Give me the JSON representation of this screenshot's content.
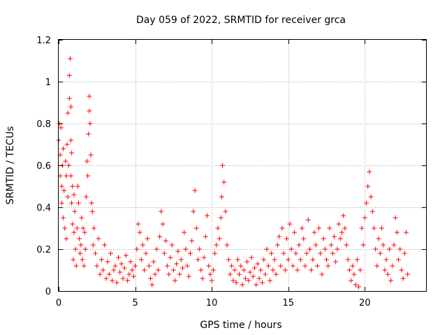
{
  "chart_data": {
    "type": "scatter",
    "title": "Day 059 of 2022, SRMTID for receiver grca",
    "xlabel": "GPS time / hours",
    "ylabel": "SRMTID / TECUs",
    "xlim": [
      0,
      24
    ],
    "ylim": [
      0,
      1.2
    ],
    "grid": true,
    "marker": "plus",
    "color": "#ff0000",
    "xticks": [
      0,
      5,
      10,
      15,
      20
    ],
    "xtick_labels": [
      "0",
      "5",
      "10",
      "15",
      "20"
    ],
    "yticks": [
      0,
      0.2,
      0.4,
      0.6,
      0.8,
      1.0,
      1.2
    ],
    "ytick_labels": [
      "0",
      "0.2",
      "0.4",
      "0.6",
      "0.8",
      "1",
      "1.2"
    ],
    "series": [
      {
        "name": "grca",
        "x": [
          0.0,
          0.05,
          0.1,
          0.1,
          0.15,
          0.2,
          0.2,
          0.25,
          0.3,
          0.3,
          0.35,
          0.4,
          0.45,
          0.5,
          0.5,
          0.55,
          0.6,
          0.6,
          0.65,
          0.7,
          0.7,
          0.75,
          0.8,
          0.8,
          0.8,
          0.85,
          0.85,
          0.9,
          0.9,
          0.95,
          1.0,
          1.0,
          1.05,
          1.1,
          1.15,
          1.2,
          1.25,
          1.3,
          1.35,
          1.4,
          1.45,
          1.5,
          1.55,
          1.6,
          1.65,
          1.7,
          1.75,
          1.8,
          1.85,
          1.9,
          1.95,
          2.0,
          2.0,
          2.05,
          2.1,
          2.15,
          2.2,
          2.25,
          2.3,
          2.4,
          2.5,
          2.6,
          2.7,
          2.8,
          2.9,
          3.0,
          3.1,
          3.2,
          3.3,
          3.4,
          3.5,
          3.6,
          3.7,
          3.8,
          3.9,
          4.0,
          4.1,
          4.2,
          4.3,
          4.4,
          4.5,
          4.6,
          4.7,
          4.8,
          4.9,
          5.0,
          5.1,
          5.2,
          5.3,
          5.4,
          5.5,
          5.6,
          5.7,
          5.8,
          5.9,
          6.0,
          6.1,
          6.2,
          6.3,
          6.4,
          6.5,
          6.6,
          6.7,
          6.8,
          6.9,
          7.0,
          7.1,
          7.2,
          7.3,
          7.4,
          7.5,
          7.6,
          7.7,
          7.8,
          7.9,
          8.0,
          8.1,
          8.2,
          8.3,
          8.4,
          8.5,
          8.6,
          8.7,
          8.8,
          8.9,
          9.0,
          9.1,
          9.2,
          9.3,
          9.4,
          9.5,
          9.6,
          9.7,
          9.8,
          9.9,
          10.0,
          10.1,
          10.2,
          10.3,
          10.4,
          10.5,
          10.6,
          10.65,
          10.7,
          10.8,
          10.9,
          11.0,
          11.1,
          11.2,
          11.3,
          11.4,
          11.5,
          11.6,
          11.7,
          11.8,
          11.9,
          12.0,
          12.1,
          12.2,
          12.3,
          12.4,
          12.5,
          12.6,
          12.7,
          12.8,
          12.9,
          13.0,
          13.1,
          13.2,
          13.3,
          13.4,
          13.5,
          13.6,
          13.7,
          13.8,
          13.9,
          14.0,
          14.1,
          14.2,
          14.3,
          14.4,
          14.5,
          14.6,
          14.7,
          14.8,
          14.9,
          15.0,
          15.1,
          15.2,
          15.3,
          15.4,
          15.5,
          15.6,
          15.7,
          15.8,
          15.9,
          16.0,
          16.1,
          16.2,
          16.3,
          16.4,
          16.5,
          16.6,
          16.7,
          16.8,
          16.9,
          17.0,
          17.1,
          17.2,
          17.3,
          17.4,
          17.5,
          17.6,
          17.7,
          17.8,
          17.9,
          18.0,
          18.1,
          18.2,
          18.3,
          18.4,
          18.5,
          18.6,
          18.7,
          18.8,
          18.9,
          19.0,
          19.1,
          19.2,
          19.3,
          19.4,
          19.5,
          19.6,
          19.7,
          19.8,
          19.9,
          20.0,
          20.1,
          20.2,
          20.3,
          20.4,
          20.5,
          20.6,
          20.7,
          20.8,
          20.9,
          21.0,
          21.1,
          21.2,
          21.3,
          21.4,
          21.5,
          21.6,
          21.7,
          21.8,
          21.9,
          22.0,
          22.1,
          22.2,
          22.3,
          22.4,
          22.5,
          22.6,
          22.7,
          22.8
        ],
        "y": [
          0.72,
          0.8,
          0.65,
          0.55,
          0.78,
          0.5,
          0.42,
          0.6,
          0.35,
          0.68,
          0.48,
          0.3,
          0.62,
          0.55,
          0.25,
          0.7,
          0.45,
          0.85,
          0.6,
          0.92,
          1.03,
          1.11,
          0.88,
          0.72,
          0.55,
          0.66,
          0.42,
          0.5,
          0.32,
          0.15,
          0.28,
          0.46,
          0.38,
          0.2,
          0.12,
          0.3,
          0.5,
          0.42,
          0.25,
          0.18,
          0.22,
          0.35,
          0.15,
          0.3,
          0.12,
          0.28,
          0.2,
          0.45,
          0.62,
          0.55,
          0.75,
          0.86,
          0.93,
          0.8,
          0.65,
          0.42,
          0.38,
          0.22,
          0.3,
          0.18,
          0.12,
          0.25,
          0.08,
          0.15,
          0.1,
          0.22,
          0.06,
          0.14,
          0.08,
          0.18,
          0.05,
          0.1,
          0.12,
          0.04,
          0.16,
          0.09,
          0.13,
          0.06,
          0.11,
          0.17,
          0.05,
          0.08,
          0.14,
          0.1,
          0.07,
          0.12,
          0.2,
          0.32,
          0.28,
          0.15,
          0.22,
          0.1,
          0.18,
          0.25,
          0.12,
          0.06,
          0.03,
          0.14,
          0.08,
          0.2,
          0.1,
          0.26,
          0.38,
          0.32,
          0.18,
          0.24,
          0.12,
          0.08,
          0.16,
          0.22,
          0.1,
          0.05,
          0.13,
          0.19,
          0.08,
          0.15,
          0.11,
          0.28,
          0.2,
          0.12,
          0.07,
          0.18,
          0.24,
          0.38,
          0.48,
          0.3,
          0.15,
          0.2,
          0.1,
          0.06,
          0.16,
          0.26,
          0.36,
          0.12,
          0.08,
          0.05,
          0.1,
          0.18,
          0.22,
          0.3,
          0.25,
          0.35,
          0.45,
          0.6,
          0.52,
          0.38,
          0.22,
          0.15,
          0.08,
          0.12,
          0.05,
          0.1,
          0.04,
          0.15,
          0.08,
          0.12,
          0.03,
          0.1,
          0.06,
          0.14,
          0.05,
          0.09,
          0.16,
          0.07,
          0.11,
          0.03,
          0.13,
          0.06,
          0.1,
          0.04,
          0.15,
          0.08,
          0.2,
          0.12,
          0.05,
          0.18,
          0.1,
          0.15,
          0.08,
          0.22,
          0.26,
          0.12,
          0.3,
          0.18,
          0.1,
          0.25,
          0.15,
          0.32,
          0.2,
          0.12,
          0.28,
          0.18,
          0.1,
          0.22,
          0.15,
          0.3,
          0.25,
          0.12,
          0.18,
          0.34,
          0.2,
          0.1,
          0.15,
          0.28,
          0.22,
          0.12,
          0.3,
          0.18,
          0.08,
          0.25,
          0.2,
          0.15,
          0.12,
          0.3,
          0.22,
          0.18,
          0.26,
          0.14,
          0.2,
          0.32,
          0.25,
          0.28,
          0.36,
          0.3,
          0.22,
          0.15,
          0.1,
          0.05,
          0.12,
          0.08,
          0.03,
          0.15,
          0.02,
          0.1,
          0.3,
          0.22,
          0.35,
          0.42,
          0.5,
          0.57,
          0.45,
          0.38,
          0.3,
          0.2,
          0.12,
          0.25,
          0.18,
          0.3,
          0.22,
          0.1,
          0.15,
          0.08,
          0.2,
          0.05,
          0.12,
          0.22,
          0.35,
          0.28,
          0.15,
          0.2,
          0.1,
          0.06,
          0.18,
          0.28,
          0.08
        ]
      }
    ]
  }
}
